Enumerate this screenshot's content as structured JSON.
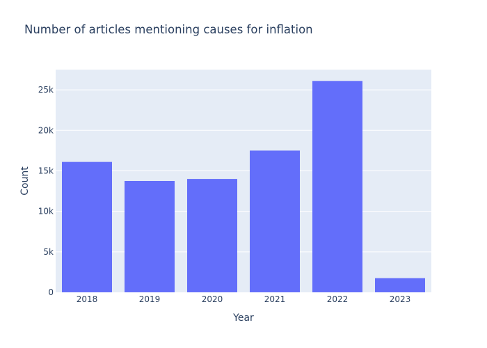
{
  "chart_data": {
    "type": "bar",
    "title": "Number of articles mentioning causes for inflation",
    "xlabel": "Year",
    "ylabel": "Count",
    "categories": [
      "2018",
      "2019",
      "2020",
      "2021",
      "2022",
      "2023"
    ],
    "values": [
      16100,
      13750,
      14000,
      17500,
      26100,
      1750
    ],
    "ylim": [
      0,
      27500
    ],
    "yticks": [
      0,
      5000,
      10000,
      15000,
      20000,
      25000
    ],
    "ytick_labels": [
      "0",
      "5k",
      "10k",
      "15k",
      "20k",
      "25k"
    ],
    "bar_color": "#636efa",
    "plot_background": "#e5ecf6",
    "grid_color": "#ffffff",
    "text_color": "#2a3f5f",
    "grid": true
  }
}
